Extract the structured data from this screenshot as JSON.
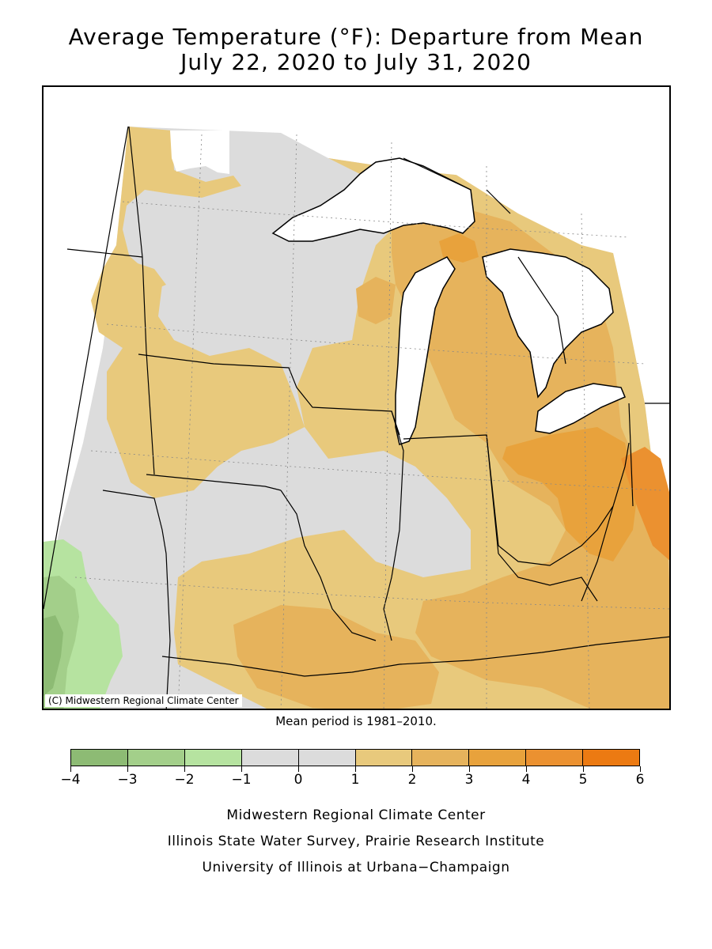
{
  "title": {
    "line1": "Average Temperature (°F): Departure from Mean",
    "line2": "July 22, 2020 to July 31, 2020"
  },
  "map": {
    "copyright": "(C) Midwestern Regional Climate Center",
    "land_color": "#dcdcdc",
    "water_color": "#ffffff"
  },
  "mean_period": "Mean period is 1981–2010.",
  "legend": {
    "bins": [
      {
        "min": -4,
        "max": -3,
        "color": "#8dbb74"
      },
      {
        "min": -3,
        "max": -2,
        "color": "#a3cf8a"
      },
      {
        "min": -2,
        "max": -1,
        "color": "#b6e3a0"
      },
      {
        "min": -1,
        "max": 0,
        "color": "#dcdcdc"
      },
      {
        "min": 0,
        "max": 1,
        "color": "#dcdcdc"
      },
      {
        "min": 1,
        "max": 2,
        "color": "#e8c97c"
      },
      {
        "min": 2,
        "max": 3,
        "color": "#e6b35c"
      },
      {
        "min": 3,
        "max": 4,
        "color": "#e8a23c"
      },
      {
        "min": 4,
        "max": 5,
        "color": "#eb9130"
      },
      {
        "min": 5,
        "max": 6,
        "color": "#ec7a12"
      }
    ],
    "tick_labels": [
      "−4",
      "−3",
      "−2",
      "−1",
      "0",
      "1",
      "2",
      "3",
      "4",
      "5",
      "6"
    ]
  },
  "credits": [
    "Midwestern Regional Climate Center",
    "Illinois State Water Survey, Prairie Research Institute",
    "University of Illinois at Urbana−Champaign"
  ]
}
